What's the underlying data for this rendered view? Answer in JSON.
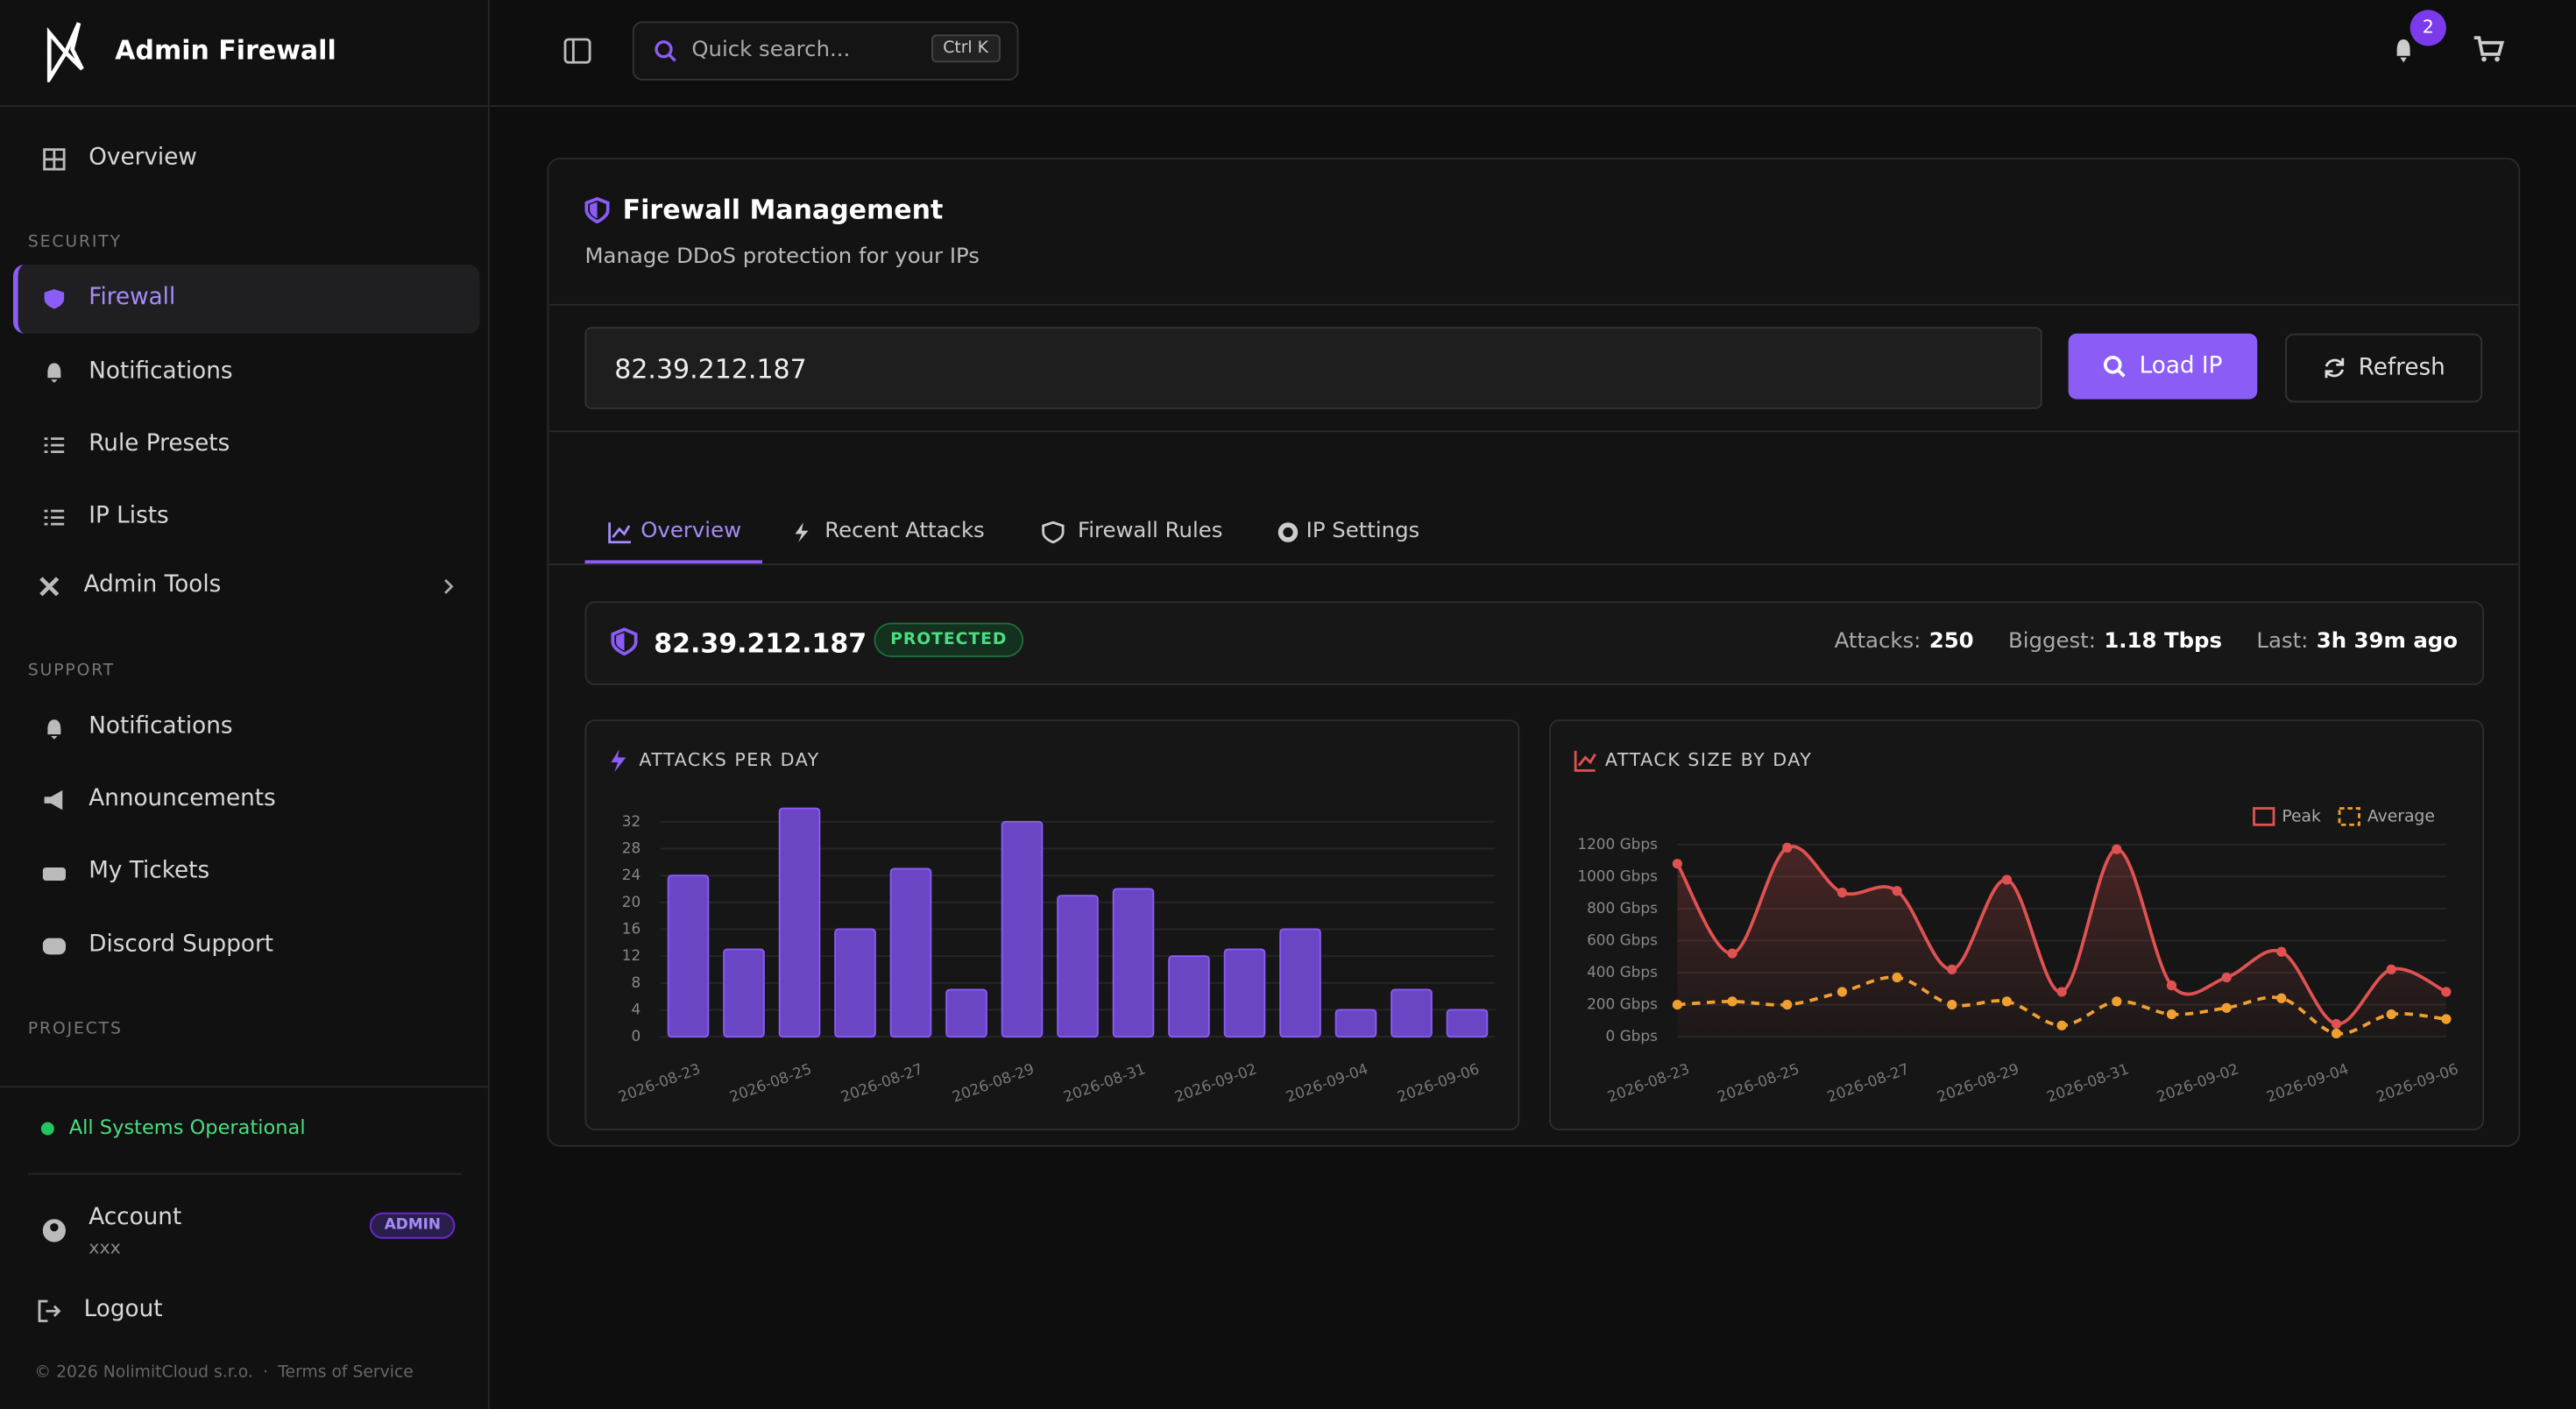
{
  "brand": "Admin Firewall",
  "nav": {
    "overview": "Overview",
    "security": "SECURITY",
    "security_items": [
      "Firewall",
      "Notifications",
      "Rule Presets",
      "IP Lists",
      "Admin Tools"
    ],
    "support": "SUPPORT",
    "support_items": [
      "Notifications",
      "Announcements",
      "My Tickets",
      "Discord Support"
    ],
    "projects": "PROJECTS"
  },
  "status": "All Systems Operational",
  "account": {
    "name": "Account",
    "user": "xxx",
    "role": "ADMIN"
  },
  "logout": "Logout",
  "footer": {
    "copyright": "© 2026 NolimitCloud s.r.o.",
    "separator": "·",
    "terms": "Terms of Service"
  },
  "search": {
    "placeholder": "Quick search...",
    "shortcut": "Ctrl K"
  },
  "notifications_count": 2,
  "panel": {
    "title": "Firewall Management",
    "subtitle": "Manage DDoS protection for your IPs",
    "ip_input": "82.39.212.187",
    "load": "Load IP",
    "refresh": "Refresh",
    "tabs": [
      "Overview",
      "Recent Attacks",
      "Firewall Rules",
      "IP Settings"
    ]
  },
  "summary": {
    "ip": "82.39.212.187",
    "status": "PROTECTED",
    "attacks_label": "Attacks:",
    "attacks": 250,
    "biggest_label": "Biggest:",
    "biggest": "1.18 Tbps",
    "last_label": "Last:",
    "last": "3h 39m ago"
  },
  "chart_data": [
    {
      "type": "bar",
      "title": "ATTACKS PER DAY",
      "color": "#6a45c4",
      "edge": "#8b5cf6",
      "categories": [
        "2026-08-23",
        null,
        "2026-08-25",
        null,
        "2026-08-27",
        null,
        "2026-08-29",
        null,
        "2026-08-31",
        null,
        "2026-09-02",
        null,
        "2026-09-04",
        null,
        "2026-09-06"
      ],
      "values": [
        24,
        13,
        34,
        16,
        25,
        7,
        32,
        21,
        22,
        12,
        13,
        16,
        4,
        7,
        4
      ],
      "ylim": [
        0,
        34
      ],
      "yticks": [
        0,
        4,
        8,
        12,
        16,
        20,
        24,
        28,
        32
      ],
      "grid": true
    },
    {
      "type": "line",
      "title": "ATTACK SIZE BY DAY",
      "legend": "top-right",
      "grid": true,
      "categories": [
        "2026-08-23",
        null,
        "2026-08-25",
        null,
        "2026-08-27",
        null,
        "2026-08-29",
        null,
        "2026-08-31",
        null,
        "2026-09-02",
        null,
        "2026-09-04",
        null,
        "2026-09-06"
      ],
      "series": [
        {
          "name": "Peak",
          "color": "#e05252",
          "values": [
            1080,
            520,
            1180,
            900,
            910,
            420,
            980,
            280,
            1170,
            320,
            370,
            530,
            80,
            420,
            280
          ]
        },
        {
          "name": "Average",
          "color": "#f0a030",
          "dashed": true,
          "values": [
            200,
            220,
            200,
            280,
            370,
            200,
            220,
            70,
            220,
            140,
            180,
            240,
            20,
            140,
            110
          ]
        }
      ],
      "ylim": [
        0,
        1200
      ],
      "yticks": [
        {
          "value": 0,
          "label": "0 Gbps"
        },
        {
          "value": 200,
          "label": "200 Gbps"
        },
        {
          "value": 400,
          "label": "400 Gbps"
        },
        {
          "value": 600,
          "label": "600 Gbps"
        },
        {
          "value": 800,
          "label": "800 Gbps"
        },
        {
          "value": 1000,
          "label": "1000 Gbps"
        },
        {
          "value": 1200,
          "label": "1200 Gbps"
        }
      ]
    }
  ]
}
